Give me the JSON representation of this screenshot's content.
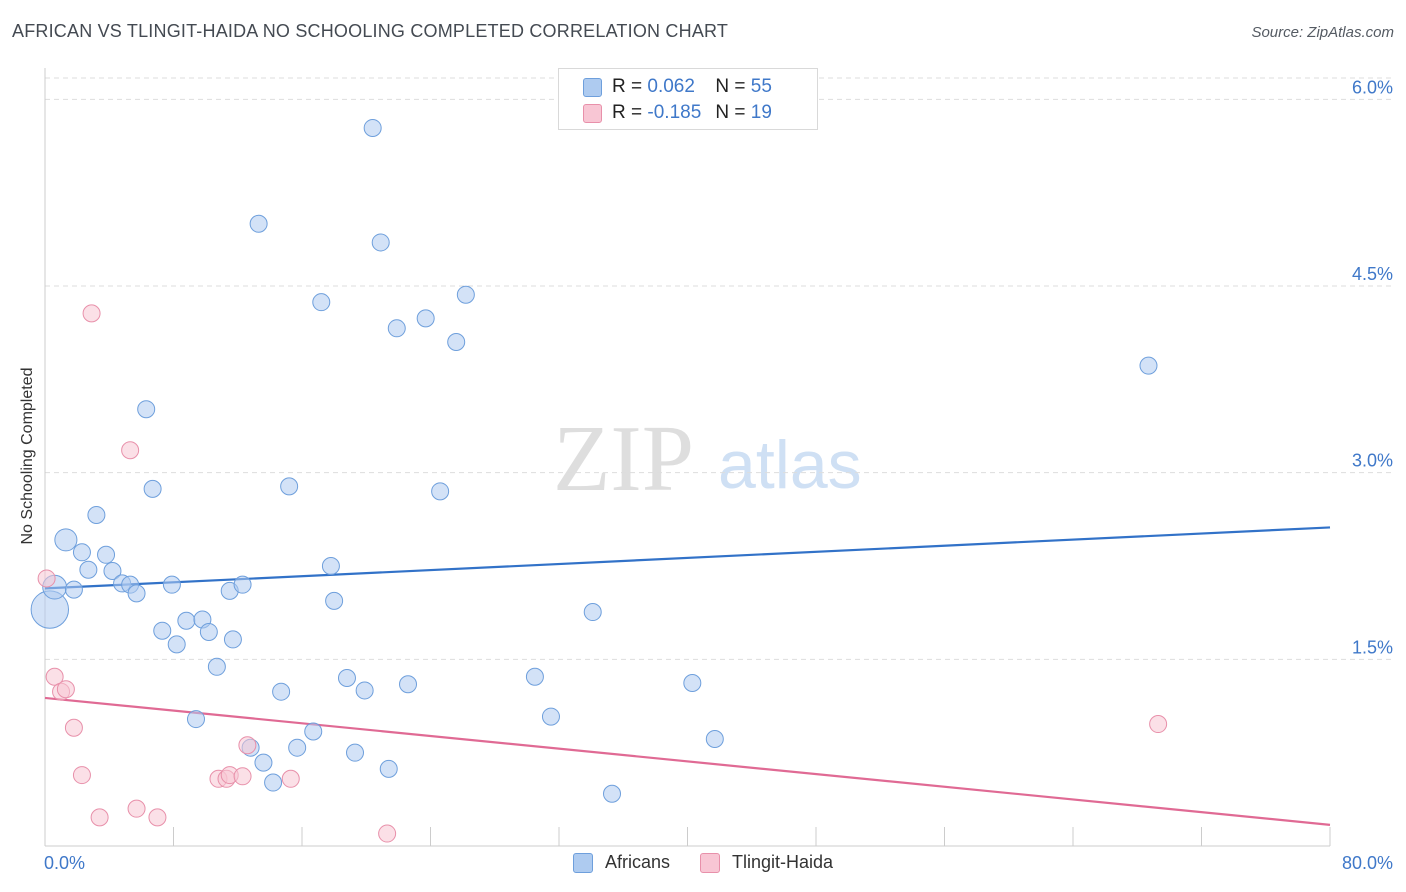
{
  "header": {
    "title": "AFRICAN VS TLINGIT-HAIDA NO SCHOOLING COMPLETED CORRELATION CHART",
    "source": "Source: ZipAtlas.com"
  },
  "watermark": {
    "zip": "ZIP",
    "atlas": "atlas"
  },
  "stats": [
    {
      "r_label": "R =",
      "r_value": "0.062",
      "n_label": "N =",
      "n_value": "55",
      "color": "#aecbf0",
      "border": "#6e9fdc"
    },
    {
      "r_label": "R =",
      "r_value": "-0.185",
      "n_label": "N =",
      "n_value": "19",
      "color": "#f8c6d4",
      "border": "#e890aa"
    }
  ],
  "colors": {
    "africans_fill": "#aecbf0",
    "africans_stroke": "#6e9fdc",
    "africans_line": "#3272c8",
    "tlingit_fill": "#f8c6d4",
    "tlingit_stroke": "#e890aa",
    "tlingit_line": "#e06a94",
    "axis_label": "#3f78c9",
    "grid": "#dddddd"
  },
  "chart_data": {
    "type": "scatter",
    "title": "AFRICAN VS TLINGIT-HAIDA NO SCHOOLING COMPLETED CORRELATION CHART",
    "ylabel": "No Schooling Completed",
    "xlabel": "",
    "xlim": [
      0,
      80
    ],
    "ylim": [
      0,
      6.3
    ],
    "x_tick_labels": [
      "0.0%",
      "80.0%"
    ],
    "y_ticks": [
      1.5,
      3.0,
      4.5,
      6.0
    ],
    "y_tick_labels": [
      "1.5%",
      "3.0%",
      "4.5%",
      "6.0%"
    ],
    "grid": "horizontal dashed",
    "legend_position": "bottom-center",
    "series": [
      {
        "name": "Africans",
        "points": [
          {
            "x": 0.3,
            "y": 1.9,
            "s": 2.2
          },
          {
            "x": 0.6,
            "y": 2.08,
            "s": 1.4
          },
          {
            "x": 1.3,
            "y": 2.46,
            "s": 1.3
          },
          {
            "x": 1.8,
            "y": 2.06,
            "s": 1
          },
          {
            "x": 2.3,
            "y": 2.36,
            "s": 1
          },
          {
            "x": 2.7,
            "y": 2.22,
            "s": 1
          },
          {
            "x": 3.2,
            "y": 2.66,
            "s": 1
          },
          {
            "x": 3.8,
            "y": 2.34,
            "s": 1
          },
          {
            "x": 4.2,
            "y": 2.21,
            "s": 1
          },
          {
            "x": 4.8,
            "y": 2.11,
            "s": 1
          },
          {
            "x": 5.3,
            "y": 2.1,
            "s": 1
          },
          {
            "x": 5.7,
            "y": 2.03,
            "s": 1
          },
          {
            "x": 6.3,
            "y": 3.51,
            "s": 1
          },
          {
            "x": 6.7,
            "y": 2.87,
            "s": 1
          },
          {
            "x": 7.3,
            "y": 1.73,
            "s": 1
          },
          {
            "x": 7.9,
            "y": 2.1,
            "s": 1
          },
          {
            "x": 8.2,
            "y": 1.62,
            "s": 1
          },
          {
            "x": 8.8,
            "y": 1.81,
            "s": 1
          },
          {
            "x": 9.4,
            "y": 1.02,
            "s": 1
          },
          {
            "x": 9.8,
            "y": 1.82,
            "s": 1
          },
          {
            "x": 10.2,
            "y": 1.72,
            "s": 1
          },
          {
            "x": 10.7,
            "y": 1.44,
            "s": 1
          },
          {
            "x": 11.5,
            "y": 2.05,
            "s": 1
          },
          {
            "x": 11.7,
            "y": 1.66,
            "s": 1
          },
          {
            "x": 12.3,
            "y": 2.1,
            "s": 1
          },
          {
            "x": 12.8,
            "y": 0.79,
            "s": 1
          },
          {
            "x": 13.3,
            "y": 5.0,
            "s": 1
          },
          {
            "x": 13.6,
            "y": 0.67,
            "s": 1
          },
          {
            "x": 14.2,
            "y": 0.51,
            "s": 1
          },
          {
            "x": 14.7,
            "y": 1.24,
            "s": 1
          },
          {
            "x": 15.2,
            "y": 2.89,
            "s": 1
          },
          {
            "x": 15.7,
            "y": 0.79,
            "s": 1
          },
          {
            "x": 16.7,
            "y": 0.92,
            "s": 1
          },
          {
            "x": 17.2,
            "y": 4.37,
            "s": 1
          },
          {
            "x": 17.8,
            "y": 2.25,
            "s": 1
          },
          {
            "x": 18.0,
            "y": 1.97,
            "s": 1
          },
          {
            "x": 18.8,
            "y": 1.35,
            "s": 1
          },
          {
            "x": 19.3,
            "y": 0.75,
            "s": 1
          },
          {
            "x": 19.9,
            "y": 1.25,
            "s": 1
          },
          {
            "x": 20.4,
            "y": 5.77,
            "s": 1
          },
          {
            "x": 20.9,
            "y": 4.85,
            "s": 1
          },
          {
            "x": 21.4,
            "y": 0.62,
            "s": 1
          },
          {
            "x": 21.9,
            "y": 4.16,
            "s": 1
          },
          {
            "x": 22.6,
            "y": 1.3,
            "s": 1
          },
          {
            "x": 23.7,
            "y": 4.24,
            "s": 1
          },
          {
            "x": 24.6,
            "y": 2.85,
            "s": 1
          },
          {
            "x": 25.6,
            "y": 4.05,
            "s": 1
          },
          {
            "x": 26.2,
            "y": 4.43,
            "s": 1
          },
          {
            "x": 30.5,
            "y": 1.36,
            "s": 1
          },
          {
            "x": 31.5,
            "y": 1.04,
            "s": 1
          },
          {
            "x": 34.1,
            "y": 1.88,
            "s": 1
          },
          {
            "x": 35.3,
            "y": 0.42,
            "s": 1
          },
          {
            "x": 40.3,
            "y": 1.31,
            "s": 1
          },
          {
            "x": 41.7,
            "y": 0.86,
            "s": 1
          },
          {
            "x": 68.7,
            "y": 3.86,
            "s": 1
          }
        ],
        "trend": {
          "x": [
            0,
            80
          ],
          "y": [
            2.07,
            2.56
          ]
        }
      },
      {
        "name": "Tlingit-Haida",
        "points": [
          {
            "x": 0.1,
            "y": 2.15,
            "s": 1
          },
          {
            "x": 0.6,
            "y": 1.36,
            "s": 1
          },
          {
            "x": 1.0,
            "y": 1.24,
            "s": 1
          },
          {
            "x": 1.3,
            "y": 1.26,
            "s": 1
          },
          {
            "x": 1.8,
            "y": 0.95,
            "s": 1
          },
          {
            "x": 2.3,
            "y": 0.57,
            "s": 1
          },
          {
            "x": 2.9,
            "y": 4.28,
            "s": 1
          },
          {
            "x": 3.4,
            "y": 0.23,
            "s": 1
          },
          {
            "x": 5.3,
            "y": 3.18,
            "s": 1
          },
          {
            "x": 5.7,
            "y": 0.3,
            "s": 1
          },
          {
            "x": 7.0,
            "y": 0.23,
            "s": 1
          },
          {
            "x": 10.8,
            "y": 0.54,
            "s": 1
          },
          {
            "x": 11.3,
            "y": 0.54,
            "s": 1
          },
          {
            "x": 11.5,
            "y": 0.57,
            "s": 1
          },
          {
            "x": 12.3,
            "y": 0.56,
            "s": 1
          },
          {
            "x": 12.6,
            "y": 0.81,
            "s": 1
          },
          {
            "x": 15.3,
            "y": 0.54,
            "s": 1
          },
          {
            "x": 21.3,
            "y": 0.1,
            "s": 1
          },
          {
            "x": 69.3,
            "y": 0.98,
            "s": 1
          }
        ],
        "trend": {
          "x": [
            0,
            80
          ],
          "y": [
            1.19,
            0.17
          ]
        }
      }
    ]
  }
}
